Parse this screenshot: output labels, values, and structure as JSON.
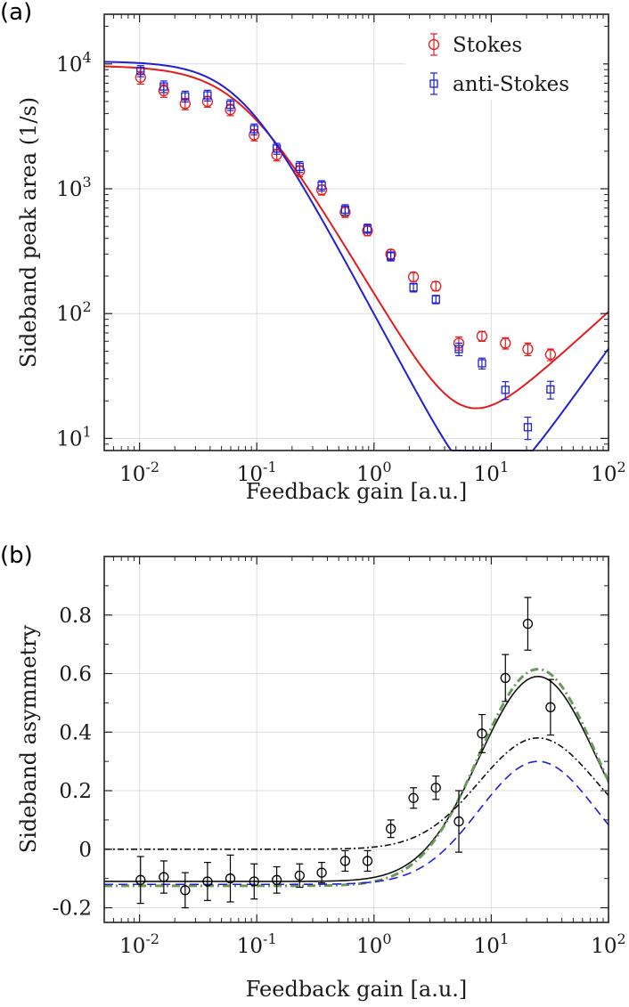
{
  "chart_data": [
    {
      "panel_label": "(a)",
      "type": "scatter",
      "xscale": "log",
      "yscale": "log",
      "xlim": [
        0.005,
        100
      ],
      "ylim": [
        8,
        25000
      ],
      "xlabel": "Feedback gain [a.u.]",
      "ylabel": "Sideband peak area (1/s)",
      "x_ticks": [
        {
          "base": "10",
          "exp": "-2"
        },
        {
          "base": "10",
          "exp": "-1"
        },
        {
          "base": "10",
          "exp": "0"
        },
        {
          "base": "10",
          "exp": "1"
        },
        {
          "base": "10",
          "exp": "2"
        }
      ],
      "y_ticks": [
        {
          "base": "10",
          "exp": "1"
        },
        {
          "base": "10",
          "exp": "2"
        },
        {
          "base": "10",
          "exp": "3"
        },
        {
          "base": "10",
          "exp": "4"
        }
      ],
      "grid": true,
      "legend_position": "top-right",
      "legend": [
        "Stokes",
        "anti-Stokes"
      ],
      "series": [
        {
          "name": "Stokes",
          "color": "#e41a1c",
          "marker": "circle",
          "x": [
            0.0102,
            0.0161,
            0.0245,
            0.038,
            0.0595,
            0.095,
            0.148,
            0.232,
            0.358,
            0.567,
            0.88,
            1.39,
            2.17,
            3.37,
            5.29,
            8.33,
            13.2,
            20.5,
            32.0
          ],
          "y": [
            7800,
            6100,
            4800,
            5000,
            4300,
            2700,
            1870,
            1390,
            980,
            650,
            460,
            300,
            197,
            166,
            58,
            66,
            58,
            52,
            47
          ],
          "err": [
            900,
            700,
            500,
            500,
            450,
            280,
            200,
            140,
            90,
            60,
            40,
            25,
            16,
            14,
            7,
            6,
            6,
            6,
            5
          ]
        },
        {
          "name": "anti-Stokes",
          "color": "#1f1fd6",
          "marker": "square",
          "x": [
            0.0102,
            0.0161,
            0.0245,
            0.038,
            0.0595,
            0.095,
            0.148,
            0.232,
            0.358,
            0.567,
            0.88,
            1.39,
            2.17,
            3.37,
            5.29,
            8.33,
            13.2,
            20.5,
            32.0
          ],
          "y": [
            8800,
            6600,
            5500,
            5600,
            4700,
            3000,
            2100,
            1500,
            1060,
            680,
            480,
            288,
            162,
            130,
            52,
            40,
            24.5,
            12.3,
            24.7
          ],
          "err": [
            900,
            700,
            550,
            550,
            470,
            300,
            210,
            150,
            100,
            65,
            40,
            24,
            13,
            10,
            6,
            4,
            4,
            2.5,
            4
          ]
        }
      ],
      "fits": [
        {
          "name": "Stokes fit",
          "color": "#e41a1c",
          "A": 9700,
          "g0": 0.07,
          "p": 1.58,
          "D": 35,
          "s": 0.85
        },
        {
          "name": "anti-Stokes fit",
          "color": "#1f1fd6",
          "A": 10500,
          "g0": 0.07,
          "p": 1.75,
          "D": 10,
          "s": 1.3
        }
      ]
    },
    {
      "panel_label": "(b)",
      "type": "scatter",
      "xscale": "log",
      "yscale": "linear",
      "xlim": [
        0.005,
        100
      ],
      "ylim": [
        -0.25,
        1.0
      ],
      "xlabel": "Feedback gain [a.u.]",
      "ylabel": "Sideband asymmetry",
      "x_ticks": [
        {
          "base": "10",
          "exp": "-2"
        },
        {
          "base": "10",
          "exp": "-1"
        },
        {
          "base": "10",
          "exp": "0"
        },
        {
          "base": "10",
          "exp": "1"
        },
        {
          "base": "10",
          "exp": "2"
        }
      ],
      "y_ticks": [
        "-0.2",
        "0",
        "0.2",
        "0.4",
        "0.6",
        "0.8"
      ],
      "grid": true,
      "series": [
        {
          "name": "measured asymmetry",
          "color": "#000000",
          "marker": "circle",
          "x": [
            0.0102,
            0.0161,
            0.0245,
            0.038,
            0.0595,
            0.095,
            0.148,
            0.232,
            0.358,
            0.567,
            0.88,
            1.39,
            2.17,
            3.37,
            5.29,
            8.33,
            13.2,
            20.5,
            32.0
          ],
          "y": [
            -0.105,
            -0.095,
            -0.14,
            -0.11,
            -0.1,
            -0.11,
            -0.105,
            -0.09,
            -0.08,
            -0.04,
            -0.04,
            0.07,
            0.175,
            0.21,
            0.095,
            0.395,
            0.585,
            0.77,
            0.485
          ],
          "err": [
            0.08,
            0.055,
            0.06,
            0.065,
            0.08,
            0.06,
            0.045,
            0.04,
            0.035,
            0.035,
            0.035,
            0.03,
            0.035,
            0.04,
            0.105,
            0.065,
            0.08,
            0.09,
            0.095
          ]
        }
      ],
      "curves": [
        {
          "name": "solid model",
          "color": "#111111",
          "dash": "",
          "base": -0.11,
          "peak": 0.59
        },
        {
          "name": "green dash-dot model",
          "color": "#6a9a5a",
          "dash": "9,4,2,4",
          "base": -0.125,
          "peak": 0.615
        },
        {
          "name": "black dash-dot model",
          "color": "#111111",
          "dash": "7,3,2,3",
          "base": 0.0,
          "peak": 0.38
        },
        {
          "name": "blue dashed model",
          "color": "#1f1fd6",
          "dash": "10,6",
          "base": -0.12,
          "peak": 0.3
        }
      ],
      "curve_shape": {
        "g0": 1.6,
        "peak_g": 25
      }
    }
  ]
}
